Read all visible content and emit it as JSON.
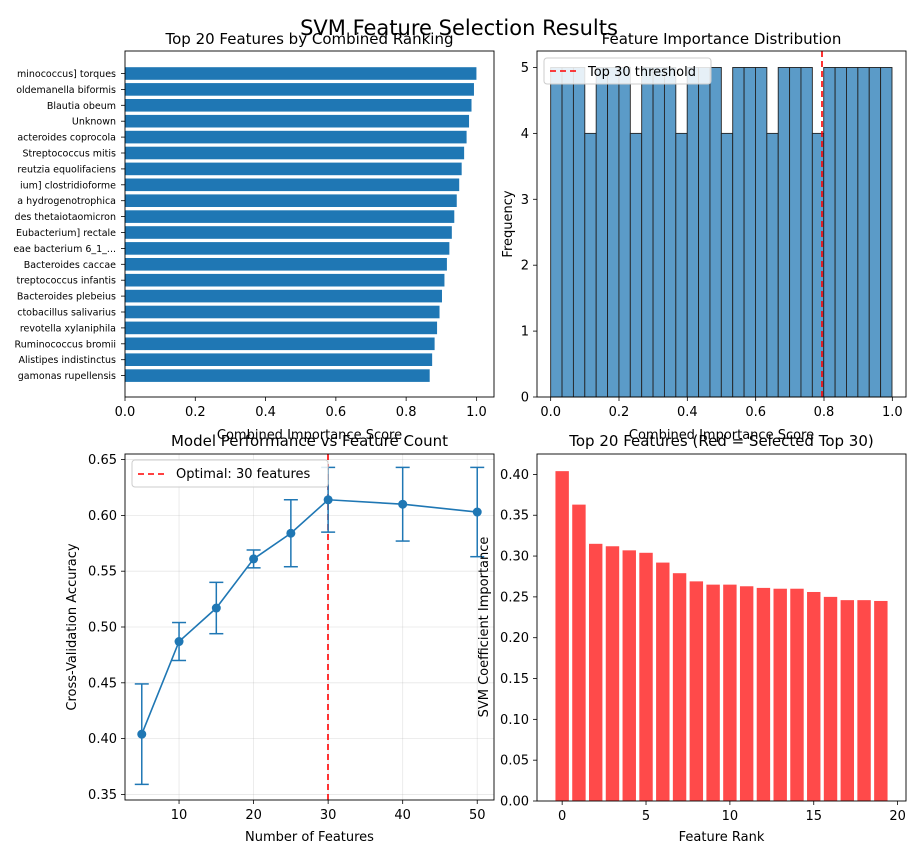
{
  "suptitle": "SVM Feature Selection Results",
  "chart_data": [
    {
      "type": "bar",
      "orientation": "horizontal",
      "title": "Top 20 Features by Combined Ranking",
      "xlabel": "Combined Importance Score",
      "ylabel": "",
      "xlim": [
        0,
        1.05
      ],
      "xticks": [
        "0.0",
        "0.2",
        "0.4",
        "0.6",
        "0.8",
        "1.0"
      ],
      "color": "#1f77b4",
      "categories": [
        "minococcus] torques",
        "oldemanella biformis",
        "Blautia obeum",
        "Unknown",
        "acteroides coprocola",
        "Streptococcus mitis",
        "reutzia equolifaciens",
        "ium] clostridioforme",
        "a hydrogenotrophica",
        "des thetaiotaomicron",
        "Eubacterium] rectale",
        "eae bacterium 6_1_...",
        "Bacteroides caccae",
        "treptococcus infantis",
        "Bacteroides plebeius",
        "ctobacillus salivarius",
        "revotella xylaniphila",
        "Ruminococcus bromii",
        "Alistipes indistinctus",
        "gamonas rupellensis"
      ],
      "values": [
        1.0,
        0.993,
        0.986,
        0.979,
        0.972,
        0.965,
        0.958,
        0.951,
        0.944,
        0.937,
        0.93,
        0.923,
        0.916,
        0.909,
        0.902,
        0.895,
        0.888,
        0.881,
        0.874,
        0.867
      ]
    },
    {
      "type": "bar",
      "subtype": "histogram",
      "title": "Feature Importance Distribution",
      "xlabel": "Combined Importance Score",
      "ylabel": "Frequency",
      "xlim": [
        -0.04,
        1.04
      ],
      "ylim": [
        0,
        5.25
      ],
      "xticks": [
        "0.0",
        "0.2",
        "0.4",
        "0.6",
        "0.8",
        "1.0"
      ],
      "yticks": [
        "0",
        "1",
        "2",
        "3",
        "4",
        "5"
      ],
      "color": "#5b9bc8",
      "bin_start": 0,
      "bin_width": 0.0333,
      "values": [
        5,
        5,
        5,
        4,
        5,
        5,
        5,
        4,
        5,
        5,
        5,
        4,
        5,
        5,
        5,
        4,
        5,
        5,
        5,
        4,
        5,
        5,
        5,
        4,
        5,
        5,
        5,
        5,
        5,
        5
      ],
      "threshold": {
        "x": 0.8,
        "label": "Top 30 threshold",
        "color": "#ff0000"
      },
      "legend": "top-left"
    },
    {
      "type": "line",
      "title": "Model Performance vs Feature Count",
      "xlabel": "Number of Features",
      "ylabel": "Cross-Validation Accuracy",
      "xlim": [
        2.75,
        52.25
      ],
      "ylim": [
        0.345,
        0.655
      ],
      "xticks": [
        "10",
        "20",
        "30",
        "40",
        "50"
      ],
      "yticks": [
        "0.35",
        "0.40",
        "0.45",
        "0.50",
        "0.55",
        "0.60",
        "0.65"
      ],
      "grid": true,
      "color": "#1f77b4",
      "x": [
        5,
        10,
        15,
        20,
        25,
        30,
        40,
        50
      ],
      "y": [
        0.404,
        0.487,
        0.517,
        0.561,
        0.584,
        0.614,
        0.61,
        0.603
      ],
      "error": [
        0.045,
        0.017,
        0.023,
        0.008,
        0.03,
        0.029,
        0.033,
        0.04
      ],
      "optimal": {
        "x": 30,
        "label": "Optimal: 30 features",
        "color": "#ff0000"
      },
      "legend": "top-left"
    },
    {
      "type": "bar",
      "title": "Top 20 Features (Red = Selected Top 30)",
      "xlabel": "Feature Rank",
      "ylabel": "SVM Coefficient Importance",
      "xlim": [
        -1.5,
        20.5
      ],
      "ylim": [
        0,
        0.425
      ],
      "xticks": [
        "0",
        "5",
        "10",
        "15",
        "20"
      ],
      "yticks": [
        "0.00",
        "0.05",
        "0.10",
        "0.15",
        "0.20",
        "0.25",
        "0.30",
        "0.35",
        "0.40"
      ],
      "color": "#ff4a4a",
      "x": [
        0,
        1,
        2,
        3,
        4,
        5,
        6,
        7,
        8,
        9,
        10,
        11,
        12,
        13,
        14,
        15,
        16,
        17,
        18,
        19
      ],
      "values": [
        0.404,
        0.363,
        0.315,
        0.312,
        0.307,
        0.304,
        0.292,
        0.279,
        0.269,
        0.265,
        0.265,
        0.263,
        0.261,
        0.26,
        0.26,
        0.256,
        0.25,
        0.246,
        0.246,
        0.245
      ]
    }
  ]
}
